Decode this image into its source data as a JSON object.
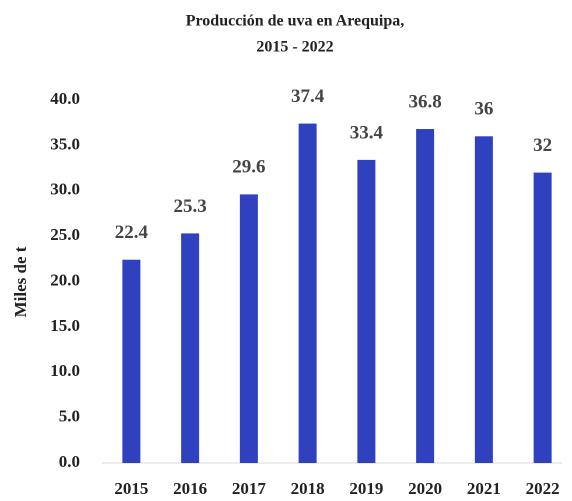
{
  "chart_data": {
    "type": "bar",
    "title": [
      "Producción de uva en Arequipa,",
      "2015 - 2022"
    ],
    "ylabel": "Miles de t",
    "categories": [
      "2015",
      "2016",
      "2017",
      "2018",
      "2019",
      "2020",
      "2021",
      "2022"
    ],
    "values": [
      22.4,
      25.3,
      29.6,
      37.4,
      33.4,
      36.8,
      36,
      32
    ],
    "color": "#2f41bf",
    "ylim": [
      0,
      40
    ],
    "yticks": [
      {
        "value": 0,
        "label": "0.0"
      },
      {
        "value": 5,
        "label": "5.0"
      },
      {
        "value": 10,
        "label": "10.0"
      },
      {
        "value": 15,
        "label": "15.0"
      },
      {
        "value": 20,
        "label": "20.0"
      },
      {
        "value": 25,
        "label": "25.0"
      },
      {
        "value": 30,
        "label": "30.0"
      },
      {
        "value": 35,
        "label": "35.0"
      },
      {
        "value": 40,
        "label": "40.0"
      }
    ],
    "grid": false
  }
}
